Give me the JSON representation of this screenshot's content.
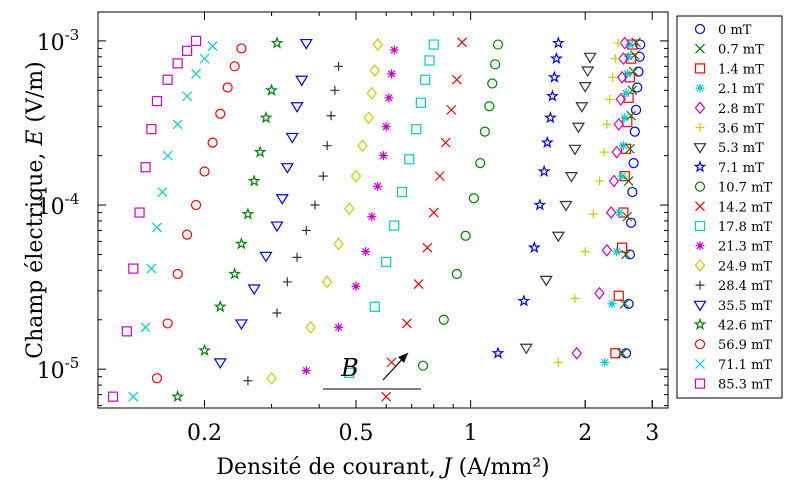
{
  "chart_data": {
    "type": "scatter",
    "x_scale": "log",
    "y_scale": "log",
    "xlim": [
      0.105,
      3.3
    ],
    "ylim": [
      5.8e-06,
      0.0015
    ],
    "xlabel_main": "Densité de courant, ",
    "xlabel_var": "J",
    "xlabel_unit": " (A/mm²)",
    "ylabel_main": "Champ électrique, ",
    "ylabel_var": "E",
    "ylabel_unit": " (V/m)",
    "x_ticks": [
      {
        "value": 0.2,
        "label": "0.2"
      },
      {
        "value": 0.5,
        "label": "0.5"
      },
      {
        "value": 1,
        "label": "1"
      },
      {
        "value": 2,
        "label": "2"
      },
      {
        "value": 3,
        "label": "3"
      }
    ],
    "y_ticks": [
      {
        "value": 1e-05,
        "base": "10",
        "exp": "-5"
      },
      {
        "value": 0.0001,
        "base": "10",
        "exp": "-4"
      },
      {
        "value": 0.001,
        "base": "10",
        "exp": "-3"
      }
    ],
    "annotation": {
      "text": "B",
      "arrow": "increasing field"
    },
    "legend_position": "outside-right",
    "grid": false,
    "series": [
      {
        "name": "0 mT",
        "color": "#0000ff",
        "marker": "circle",
        "x": [
          2.56,
          2.6,
          2.62,
          2.64,
          2.66,
          2.68,
          2.7,
          2.72,
          2.74,
          2.76,
          2.78,
          2.79
        ],
        "y": [
          1.25e-05,
          2.5e-05,
          5e-05,
          7.8e-05,
          0.00012,
          0.00018,
          0.00028,
          0.00038,
          0.00052,
          0.00065,
          0.0008,
          0.00095
        ]
      },
      {
        "name": "0.7 mT",
        "color": "#008000",
        "marker": "x",
        "x": [
          2.5,
          2.54,
          2.56,
          2.58,
          2.6,
          2.62,
          2.64,
          2.66,
          2.68,
          2.7,
          2.72
        ],
        "y": [
          1.25e-05,
          2.5e-05,
          5e-05,
          8.5e-05,
          0.00014,
          0.00022,
          0.00035,
          0.0005,
          0.00065,
          0.00082,
          0.00098
        ]
      },
      {
        "name": "1.4 mT",
        "color": "#ff0000",
        "marker": "square",
        "x": [
          2.4,
          2.45,
          2.5,
          2.52,
          2.54,
          2.56,
          2.58,
          2.6,
          2.62,
          2.64,
          2.66
        ],
        "y": [
          1.25e-05,
          2.8e-05,
          5.5e-05,
          9e-05,
          0.00015,
          0.00022,
          0.00032,
          0.00045,
          0.0006,
          0.00078,
          0.00095
        ]
      },
      {
        "name": "2.1 mT",
        "color": "#00cccc",
        "marker": "asterisk",
        "x": [
          2.25,
          2.35,
          2.42,
          2.46,
          2.5,
          2.52,
          2.54,
          2.56,
          2.58,
          2.6,
          2.62
        ],
        "y": [
          1.1e-05,
          2.5e-05,
          5.2e-05,
          9e-05,
          0.00015,
          0.00023,
          0.00034,
          0.00048,
          0.00063,
          0.0008,
          0.00095
        ]
      },
      {
        "name": "2.8 mT",
        "color": "#cc00cc",
        "marker": "diamond",
        "x": [
          1.9,
          2.18,
          2.28,
          2.34,
          2.38,
          2.42,
          2.45,
          2.48,
          2.5,
          2.52,
          2.54
        ],
        "y": [
          1.25e-05,
          2.9e-05,
          5.3e-05,
          9e-05,
          0.00014,
          0.00021,
          0.00031,
          0.00044,
          0.0006,
          0.00078,
          0.00097
        ]
      },
      {
        "name": "3.6 mT",
        "color": "#cccc00",
        "marker": "plus",
        "x": [
          1.7,
          1.88,
          2,
          2.1,
          2.18,
          2.24,
          2.28,
          2.32,
          2.36,
          2.4,
          2.44
        ],
        "y": [
          1.1e-05,
          2.7e-05,
          5.2e-05,
          8.8e-05,
          0.00014,
          0.00021,
          0.00031,
          0.00044,
          0.0006,
          0.00078,
          0.00097
        ]
      },
      {
        "name": "5.3 mT",
        "color": "#333333",
        "marker": "triangle-down",
        "x": [
          1.4,
          1.58,
          1.7,
          1.78,
          1.84,
          1.88,
          1.92,
          1.96,
          2,
          2.03,
          2.06
        ],
        "y": [
          1.35e-05,
          3.5e-05,
          6.5e-05,
          0.0001,
          0.00015,
          0.00022,
          0.0003,
          0.0004,
          0.00053,
          0.00066,
          0.0008
        ]
      },
      {
        "name": "7.1 mT",
        "color": "#0000ff",
        "marker": "star",
        "x": [
          1.18,
          1.38,
          1.47,
          1.52,
          1.56,
          1.59,
          1.62,
          1.64,
          1.66,
          1.68,
          1.7
        ],
        "y": [
          1.25e-05,
          2.6e-05,
          5.5e-05,
          0.0001,
          0.00016,
          0.00024,
          0.00034,
          0.00046,
          0.0006,
          0.00078,
          0.00097
        ]
      },
      {
        "name": "10.7 mT",
        "color": "#008000",
        "marker": "circle",
        "x": [
          0.75,
          0.85,
          0.92,
          0.97,
          1.02,
          1.06,
          1.09,
          1.12,
          1.14,
          1.16,
          1.18
        ],
        "y": [
          1.05e-05,
          2e-05,
          3.8e-05,
          6.5e-05,
          0.00011,
          0.00018,
          0.00028,
          0.0004,
          0.00055,
          0.00072,
          0.00095
        ]
      },
      {
        "name": "14.2 mT",
        "color": "#ff0000",
        "marker": "x",
        "x": [
          0.6,
          0.62,
          0.68,
          0.73,
          0.77,
          0.8,
          0.83,
          0.86,
          0.89,
          0.92,
          0.95
        ],
        "y": [
          6.8e-06,
          1.1e-05,
          1.9e-05,
          3.3e-05,
          5.5e-05,
          9e-05,
          0.00015,
          0.00024,
          0.00038,
          0.00058,
          0.00098
        ]
      },
      {
        "name": "17.8 mT",
        "color": "#00cccc",
        "marker": "square",
        "x": [
          0.48,
          0.56,
          0.6,
          0.63,
          0.66,
          0.69,
          0.72,
          0.74,
          0.76,
          0.78,
          0.8
        ],
        "y": [
          9.5e-06,
          2.4e-05,
          4.5e-05,
          7.5e-05,
          0.00012,
          0.00019,
          0.00029,
          0.00042,
          0.00058,
          0.00076,
          0.00095
        ]
      },
      {
        "name": "21.3 mT",
        "color": "#cc00cc",
        "marker": "asterisk",
        "x": [
          0.37,
          0.45,
          0.5,
          0.53,
          0.55,
          0.57,
          0.59,
          0.6,
          0.61,
          0.62,
          0.63
        ],
        "y": [
          9.8e-06,
          1.8e-05,
          3.2e-05,
          5.2e-05,
          8.5e-05,
          0.00013,
          0.0002,
          0.0003,
          0.00045,
          0.00063,
          0.00088
        ]
      },
      {
        "name": "24.9 mT",
        "color": "#cccc00",
        "marker": "diamond",
        "x": [
          0.3,
          0.38,
          0.42,
          0.45,
          0.48,
          0.5,
          0.52,
          0.54,
          0.55,
          0.56,
          0.57
        ],
        "y": [
          8.8e-06,
          1.8e-05,
          3.4e-05,
          5.8e-05,
          9.5e-05,
          0.00015,
          0.00023,
          0.00034,
          0.00048,
          0.00066,
          0.00095
        ]
      },
      {
        "name": "28.4 mT",
        "color": "#333333",
        "marker": "plus",
        "x": [
          0.26,
          0.31,
          0.33,
          0.35,
          0.37,
          0.39,
          0.41,
          0.42,
          0.43,
          0.44,
          0.45
        ],
        "y": [
          8.5e-06,
          2.2e-05,
          3.4e-05,
          4.8e-05,
          7e-05,
          0.0001,
          0.00015,
          0.00023,
          0.00035,
          0.0005,
          0.0007
        ]
      },
      {
        "name": "35.5 mT",
        "color": "#0000ff",
        "marker": "triangle-down",
        "x": [
          0.22,
          0.25,
          0.27,
          0.29,
          0.31,
          0.32,
          0.33,
          0.34,
          0.35,
          0.36,
          0.37
        ],
        "y": [
          1.1e-05,
          1.9e-05,
          3.1e-05,
          4.9e-05,
          7.5e-05,
          0.00011,
          0.00017,
          0.00026,
          0.0004,
          0.00058,
          0.00097
        ]
      },
      {
        "name": "42.6 mT",
        "color": "#008000",
        "marker": "star",
        "x": [
          0.17,
          0.2,
          0.22,
          0.24,
          0.25,
          0.26,
          0.27,
          0.28,
          0.29,
          0.3,
          0.31
        ],
        "y": [
          6.8e-06,
          1.3e-05,
          2.4e-05,
          3.8e-05,
          5.8e-05,
          8.8e-05,
          0.00014,
          0.00021,
          0.00034,
          0.0005,
          0.00097
        ]
      },
      {
        "name": "56.9 mT",
        "color": "#ff0000",
        "marker": "circle",
        "x": [
          0.15,
          0.16,
          0.17,
          0.18,
          0.19,
          0.2,
          0.21,
          0.22,
          0.23,
          0.24,
          0.25
        ],
        "y": [
          8.8e-06,
          1.9e-05,
          3.8e-05,
          6.6e-05,
          0.0001,
          0.00016,
          0.00024,
          0.00036,
          0.00052,
          0.0007,
          0.0009
        ]
      },
      {
        "name": "71.1 mT",
        "color": "#00cccc",
        "marker": "x",
        "x": [
          0.13,
          0.14,
          0.145,
          0.15,
          0.155,
          0.16,
          0.17,
          0.18,
          0.19,
          0.2,
          0.21
        ],
        "y": [
          6.8e-06,
          1.8e-05,
          4.1e-05,
          7.3e-05,
          0.00012,
          0.0002,
          0.00031,
          0.00046,
          0.00063,
          0.00078,
          0.00093
        ]
      },
      {
        "name": "85.3 mT",
        "color": "#cc00cc",
        "marker": "square",
        "x": [
          0.115,
          0.125,
          0.13,
          0.135,
          0.14,
          0.145,
          0.15,
          0.16,
          0.17,
          0.18,
          0.19
        ],
        "y": [
          6.8e-06,
          1.7e-05,
          4.1e-05,
          9e-05,
          0.00017,
          0.00029,
          0.00043,
          0.00058,
          0.00073,
          0.00087,
          0.001
        ]
      }
    ]
  }
}
